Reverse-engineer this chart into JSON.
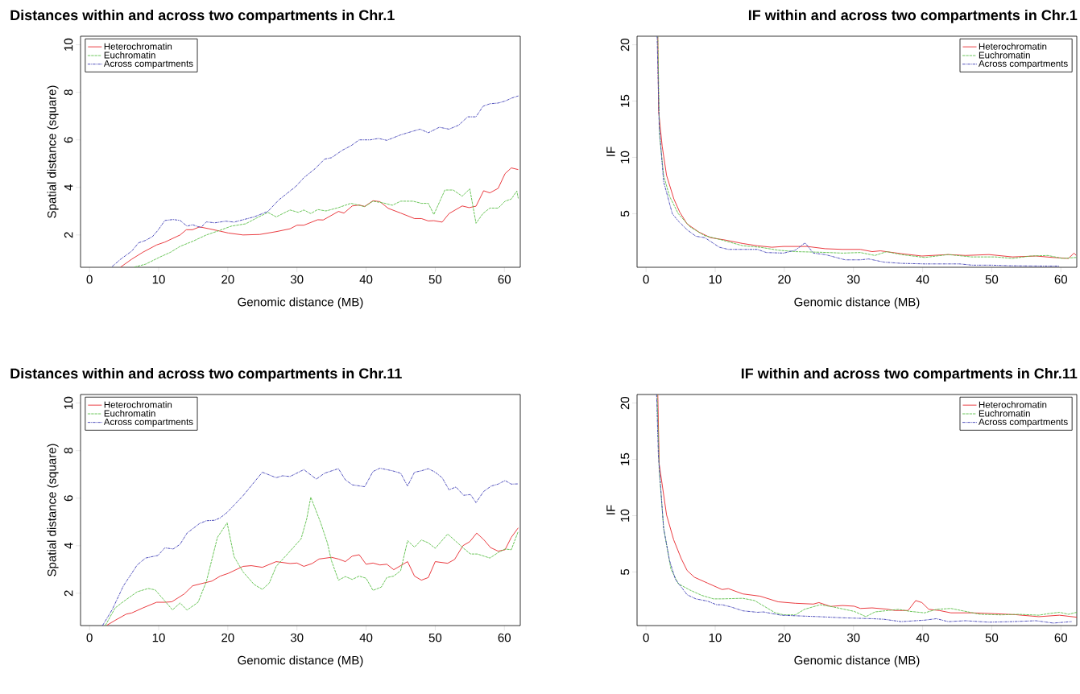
{
  "chart_data": [
    {
      "type": "line",
      "title": "Distances within and across two compartments in Chr.1",
      "xlabel": "Genomic distance (MB)",
      "ylabel": "Spatial distance (square)",
      "xlim": [
        -1.3,
        62.3
      ],
      "ylim": [
        0.64,
        10.36
      ],
      "xticks": [
        0,
        10,
        20,
        30,
        40,
        50,
        60
      ],
      "yticks": [
        2,
        4,
        6,
        8,
        10
      ],
      "legend": "top left",
      "series": [
        {
          "name": "Heterochromatin",
          "color": "#e8262b",
          "line_style": "solid",
          "x": [
            4.5,
            6.1,
            7.7,
            9.7,
            10.9,
            13.1,
            14.0,
            14.9,
            15.9,
            17.3,
            18.9,
            20.1,
            22.2,
            24.6,
            27.0,
            29.0,
            30.0,
            31.0,
            33.0,
            33.8,
            36.0,
            36.8,
            38.0,
            39.0,
            39.8,
            41.0,
            42.0,
            43.2,
            45.0,
            47.0,
            48.0,
            49.0,
            49.8,
            51.0,
            52.0,
            53.9,
            54.9,
            55.9,
            57.0,
            57.9,
            59.1,
            60.1,
            61.0,
            62.0
          ],
          "values": [
            0.65,
            0.98,
            1.27,
            1.58,
            1.7,
            2.0,
            2.22,
            2.22,
            2.34,
            2.26,
            2.16,
            2.08,
            2.0,
            2.02,
            2.14,
            2.26,
            2.41,
            2.41,
            2.64,
            2.63,
            2.99,
            2.92,
            3.22,
            3.26,
            3.2,
            3.44,
            3.4,
            3.12,
            2.92,
            2.69,
            2.69,
            2.59,
            2.6,
            2.54,
            2.9,
            3.22,
            3.15,
            3.21,
            3.86,
            3.77,
            3.96,
            4.58,
            4.82,
            4.75
          ]
        },
        {
          "name": "Euchromatin",
          "color": "#5cc04a",
          "line_style": "dashed",
          "x": [
            6.5,
            8.1,
            10.1,
            11.7,
            13.1,
            14.9,
            16.9,
            18.9,
            20.5,
            22.6,
            24.2,
            25.8,
            27.0,
            29.0,
            30.2,
            31.0,
            32.0,
            33.0,
            34.2,
            36.0,
            37.8,
            39.8,
            41.0,
            42.6,
            43.8,
            45.0,
            46.8,
            48.0,
            49.0,
            49.8,
            51.4,
            52.6,
            53.9,
            55.0,
            55.9,
            56.9,
            57.9,
            59.1,
            60.1,
            61.0,
            61.8,
            62.0
          ],
          "values": [
            0.65,
            0.77,
            1.06,
            1.27,
            1.52,
            1.73,
            2.0,
            2.2,
            2.37,
            2.47,
            2.72,
            2.95,
            2.76,
            3.05,
            2.95,
            3.05,
            2.9,
            3.07,
            3.01,
            3.15,
            3.33,
            3.19,
            3.42,
            3.34,
            3.25,
            3.42,
            3.42,
            3.33,
            3.33,
            2.86,
            3.89,
            3.89,
            3.63,
            3.94,
            2.49,
            2.9,
            3.13,
            3.13,
            3.42,
            3.51,
            3.85,
            3.55
          ]
        },
        {
          "name": "Across compartments",
          "color": "#3c3cb4",
          "line_style": "dashdot",
          "x": [
            3.3,
            4.5,
            6.1,
            7.1,
            8.1,
            9.1,
            9.9,
            10.9,
            12.1,
            13.1,
            14.1,
            14.9,
            16.1,
            16.9,
            18.1,
            19.7,
            20.9,
            22.2,
            23.8,
            25.8,
            27.4,
            29.8,
            31.0,
            32.6,
            34.0,
            35.0,
            36.6,
            37.8,
            39.0,
            40.6,
            41.8,
            43.0,
            45.0,
            46.6,
            47.8,
            49.0,
            50.6,
            52.0,
            53.4,
            54.7,
            55.9,
            56.9,
            57.9,
            59.1,
            60.1,
            61.0,
            62.0
          ],
          "values": [
            0.68,
            0.98,
            1.32,
            1.67,
            1.77,
            1.93,
            2.2,
            2.61,
            2.65,
            2.61,
            2.37,
            2.43,
            2.31,
            2.55,
            2.51,
            2.58,
            2.54,
            2.64,
            2.76,
            2.99,
            3.48,
            4.03,
            4.41,
            4.78,
            5.19,
            5.25,
            5.57,
            5.75,
            6.0,
            6.0,
            6.06,
            5.98,
            6.21,
            6.35,
            6.45,
            6.3,
            6.53,
            6.45,
            6.62,
            6.97,
            6.97,
            7.41,
            7.52,
            7.55,
            7.63,
            7.75,
            7.85
          ]
        }
      ]
    },
    {
      "type": "line",
      "title": "IF within and across two compartments in Chr.1",
      "xlabel": "Genomic distance (MB)",
      "ylabel": "IF",
      "xlim": [
        -1.3,
        62.3
      ],
      "ylim": [
        0.24,
        20.76
      ],
      "xticks": [
        0,
        10,
        20,
        30,
        40,
        50,
        60
      ],
      "yticks": [
        5,
        10,
        15,
        20
      ],
      "legend": "top right",
      "series": [
        {
          "name": "Heterochromatin",
          "color": "#e8262b",
          "line_style": "solid",
          "x": [
            1.7,
            1.82,
            2.33,
            2.97,
            4.03,
            4.88,
            5.94,
            7.63,
            9.33,
            11.45,
            14.0,
            16.1,
            18.2,
            19.9,
            23.3,
            25.9,
            28.4,
            31.0,
            32.7,
            33.9,
            36.9,
            39.9,
            43.7,
            46.2,
            49.6,
            53.0,
            56.4,
            58.9,
            61.1,
            61.9,
            62.2
          ],
          "values": [
            20.76,
            14.1,
            11.0,
            8.4,
            6.3,
            5.13,
            4.09,
            3.37,
            2.87,
            2.66,
            2.35,
            2.15,
            2.02,
            2.09,
            2.09,
            1.89,
            1.83,
            1.83,
            1.63,
            1.7,
            1.45,
            1.24,
            1.37,
            1.29,
            1.37,
            1.16,
            1.24,
            1.11,
            1.03,
            1.5,
            1.3
          ]
        },
        {
          "name": "Euchromatin",
          "color": "#5cc04a",
          "line_style": "dashed",
          "x": [
            1.7,
            1.95,
            2.54,
            3.39,
            4.66,
            6.36,
            8.48,
            11.0,
            14.0,
            16.5,
            19.1,
            21.6,
            25.0,
            28.4,
            31.0,
            33.1,
            34.8,
            36.9,
            40.3,
            43.7,
            47.1,
            50.5,
            53.0,
            55.6,
            58.1,
            60.2,
            62.2
          ],
          "values": [
            20.76,
            12.0,
            8.4,
            6.56,
            5.0,
            3.83,
            3.05,
            2.66,
            2.15,
            2.02,
            1.76,
            1.63,
            1.58,
            1.5,
            1.55,
            1.29,
            1.63,
            1.37,
            1.11,
            1.37,
            1.16,
            1.16,
            1.03,
            1.24,
            1.29,
            1.03,
            1.11
          ]
        },
        {
          "name": "Across compartments",
          "color": "#3c3cb4",
          "line_style": "dashdot",
          "x": [
            1.6,
            1.9,
            2.54,
            3.8,
            4.66,
            5.94,
            7.2,
            8.5,
            10.6,
            11.9,
            14.0,
            16.1,
            17.4,
            19.9,
            21.6,
            23.0,
            24.2,
            25.9,
            28.8,
            31.0,
            32.2,
            34.4,
            36.9,
            40.3,
            42.8,
            45.4,
            47.1,
            50.0,
            52.6,
            55.6,
            57.7,
            59.8
          ],
          "values": [
            20.76,
            12.8,
            7.85,
            5.0,
            4.35,
            3.57,
            3.0,
            2.87,
            2.02,
            1.83,
            1.83,
            1.83,
            1.55,
            1.5,
            1.76,
            2.41,
            1.5,
            1.37,
            0.9,
            0.9,
            0.98,
            0.7,
            0.59,
            0.54,
            0.54,
            0.54,
            0.43,
            0.43,
            0.38,
            0.36,
            0.35,
            0.35
          ]
        }
      ]
    },
    {
      "type": "line",
      "title": "Distances within and across two compartments in Chr.11",
      "xlabel": "Genomic distance (MB)",
      "ylabel": "Spatial distance (square)",
      "xlim": [
        -1.3,
        62.3
      ],
      "ylim": [
        0.64,
        10.36
      ],
      "xticks": [
        0,
        10,
        20,
        30,
        40,
        50,
        60
      ],
      "yticks": [
        2,
        4,
        6,
        8,
        10
      ],
      "legend": "top left",
      "series": [
        {
          "name": "Heterochromatin",
          "color": "#e8262b",
          "line_style": "solid",
          "x": [
            2.5,
            3.7,
            5.3,
            6.1,
            7.7,
            9.7,
            10.9,
            11.9,
            13.7,
            14.9,
            16.1,
            17.7,
            18.9,
            20.1,
            22.2,
            23.4,
            25.0,
            27.0,
            29.0,
            30.0,
            31.0,
            32.2,
            33.2,
            35.0,
            36.0,
            37.0,
            38.0,
            39.0,
            40.0,
            41.0,
            42.0,
            43.0,
            44.0,
            45.0,
            46.0,
            47.0,
            48.0,
            49.0,
            50.0,
            51.8,
            52.8,
            54.0,
            55.0,
            56.0,
            57.0,
            58.0,
            59.1,
            60.1,
            61.0,
            62.0
          ],
          "values": [
            0.65,
            0.86,
            1.12,
            1.17,
            1.38,
            1.62,
            1.62,
            1.64,
            1.97,
            2.31,
            2.4,
            2.51,
            2.72,
            2.84,
            3.13,
            3.16,
            3.09,
            3.33,
            3.25,
            3.27,
            3.13,
            3.25,
            3.44,
            3.51,
            3.44,
            3.33,
            3.56,
            3.62,
            3.22,
            3.27,
            3.19,
            3.22,
            2.99,
            3.16,
            3.33,
            2.72,
            2.55,
            2.66,
            3.33,
            3.26,
            3.42,
            4.0,
            4.17,
            4.53,
            4.26,
            3.92,
            3.77,
            3.83,
            4.35,
            4.75
          ]
        },
        {
          "name": "Euchromatin",
          "color": "#5cc04a",
          "line_style": "dashed",
          "x": [
            2.3,
            3.7,
            4.9,
            6.9,
            8.5,
            9.5,
            10.9,
            12.0,
            13.1,
            14.1,
            15.7,
            16.9,
            18.5,
            19.9,
            20.9,
            22.2,
            23.8,
            25.0,
            26.0,
            27.0,
            29.0,
            30.6,
            31.4,
            32.0,
            33.4,
            34.4,
            35.0,
            36.0,
            37.0,
            38.0,
            39.0,
            40.0,
            41.0,
            42.2,
            43.0,
            44.0,
            45.0,
            46.0,
            47.0,
            48.0,
            49.0,
            50.0,
            51.8,
            53.0,
            54.1,
            55.1,
            56.1,
            57.9,
            59.1,
            60.1,
            61.0,
            62.0
          ],
          "values": [
            0.65,
            1.38,
            1.65,
            2.06,
            2.2,
            2.14,
            1.67,
            1.3,
            1.59,
            1.29,
            1.62,
            2.49,
            4.35,
            4.96,
            3.54,
            2.9,
            2.37,
            2.16,
            2.43,
            3.13,
            3.77,
            4.29,
            5.11,
            6.04,
            4.99,
            4.12,
            3.36,
            2.55,
            2.7,
            2.58,
            2.72,
            2.63,
            2.12,
            2.26,
            2.66,
            2.72,
            2.95,
            4.21,
            3.94,
            4.24,
            4.12,
            3.89,
            4.49,
            4.18,
            3.89,
            3.65,
            3.65,
            3.48,
            3.71,
            3.86,
            3.83,
            4.6
          ]
        },
        {
          "name": "Across compartments",
          "color": "#3c3cb4",
          "line_style": "dashdot",
          "x": [
            1.9,
            3.3,
            4.9,
            6.9,
            8.1,
            9.9,
            10.9,
            12.1,
            13.1,
            14.1,
            15.9,
            16.9,
            18.1,
            18.9,
            19.9,
            22.2,
            25.0,
            27.0,
            27.9,
            29.0,
            31.0,
            32.8,
            34.0,
            36.0,
            37.0,
            38.0,
            39.8,
            41.0,
            42.0,
            43.8,
            45.0,
            46.0,
            47.0,
            48.0,
            49.0,
            50.0,
            51.0,
            52.0,
            53.0,
            54.1,
            55.1,
            55.9,
            57.0,
            58.1,
            59.1,
            60.1,
            61.0,
            62.0
          ],
          "values": [
            0.65,
            1.32,
            2.31,
            3.19,
            3.48,
            3.59,
            3.91,
            3.86,
            4.06,
            4.53,
            4.93,
            5.05,
            5.07,
            5.17,
            5.4,
            6.1,
            7.09,
            6.86,
            6.94,
            6.91,
            7.2,
            6.8,
            7.05,
            7.24,
            6.77,
            6.56,
            6.48,
            7.12,
            7.26,
            7.15,
            7.05,
            6.51,
            7.09,
            7.15,
            7.24,
            7.09,
            6.86,
            6.35,
            6.47,
            6.12,
            6.15,
            5.81,
            6.28,
            6.51,
            6.59,
            6.74,
            6.59,
            6.6
          ]
        }
      ]
    },
    {
      "type": "line",
      "title": "IF within and across two compartments in Chr.11",
      "xlabel": "Genomic distance (MB)",
      "ylabel": "IF",
      "xlim": [
        -1.3,
        62.3
      ],
      "ylim": [
        0.24,
        20.76
      ],
      "xticks": [
        0,
        10,
        20,
        30,
        40,
        50,
        60
      ],
      "yticks": [
        5,
        10,
        15,
        20
      ],
      "legend": "top right",
      "series": [
        {
          "name": "Heterochromatin",
          "color": "#e8262b",
          "line_style": "solid",
          "x": [
            1.7,
            1.9,
            2.97,
            4.0,
            5.1,
            5.94,
            7.0,
            8.9,
            11.0,
            11.9,
            14.0,
            16.5,
            19.1,
            21.6,
            24.2,
            25.0,
            26.7,
            28.4,
            30.1,
            31.0,
            32.7,
            34.8,
            36.0,
            37.9,
            39.0,
            39.9,
            40.9,
            42.4,
            44.1,
            47.1,
            50.5,
            53.4,
            56.8,
            59.8,
            62.3
          ],
          "values": [
            20.76,
            14.6,
            10.06,
            7.85,
            6.17,
            5.13,
            4.53,
            4.01,
            3.44,
            3.52,
            3.05,
            2.85,
            2.35,
            2.22,
            2.15,
            2.28,
            1.94,
            2.02,
            1.96,
            1.76,
            1.81,
            1.7,
            1.58,
            1.58,
            2.46,
            2.28,
            1.68,
            1.58,
            1.37,
            1.37,
            1.29,
            1.21,
            1.03,
            1.16,
            0.98
          ]
        },
        {
          "name": "Euchromatin",
          "color": "#5cc04a",
          "line_style": "dashed",
          "x": [
            1.6,
            1.9,
            2.54,
            3.6,
            4.66,
            6.36,
            8.06,
            9.75,
            11.0,
            14.0,
            15.7,
            16.9,
            18.7,
            19.9,
            21.6,
            22.9,
            25.2,
            27.1,
            30.1,
            31.8,
            33.1,
            36.5,
            38.2,
            40.3,
            42.0,
            44.1,
            45.8,
            48.3,
            51.3,
            53.9,
            56.8,
            58.1,
            59.8,
            61.1,
            62.3
          ],
          "values": [
            20.76,
            14.1,
            8.9,
            5.26,
            3.96,
            3.39,
            2.92,
            2.61,
            2.61,
            2.66,
            2.46,
            2.02,
            1.37,
            1.19,
            1.19,
            1.68,
            2.09,
            1.89,
            1.5,
            1.03,
            1.45,
            1.68,
            1.5,
            1.37,
            1.68,
            1.76,
            1.55,
            1.24,
            1.19,
            1.24,
            1.16,
            1.29,
            1.42,
            1.24,
            1.42
          ]
        },
        {
          "name": "Across compartments",
          "color": "#3c3cb4",
          "line_style": "dashdot",
          "x": [
            1.53,
            1.78,
            2.54,
            3.39,
            4.24,
            5.94,
            7.2,
            8.9,
            10.2,
            11.0,
            12.3,
            14.0,
            16.1,
            17.0,
            19.5,
            21.6,
            25.0,
            28.4,
            32.7,
            34.4,
            36.9,
            40.3,
            42.0,
            43.7,
            46.2,
            49.6,
            53.0,
            56.4,
            58.9,
            61.5
          ],
          "values": [
            20.76,
            15.4,
            8.9,
            6.04,
            4.35,
            2.98,
            2.61,
            2.41,
            2.09,
            2.09,
            1.89,
            1.55,
            1.42,
            1.45,
            1.16,
            1.11,
            1.03,
            0.93,
            0.85,
            0.8,
            0.59,
            0.72,
            0.85,
            0.59,
            0.67,
            0.54,
            0.59,
            0.67,
            0.46,
            0.59
          ]
        }
      ]
    }
  ]
}
